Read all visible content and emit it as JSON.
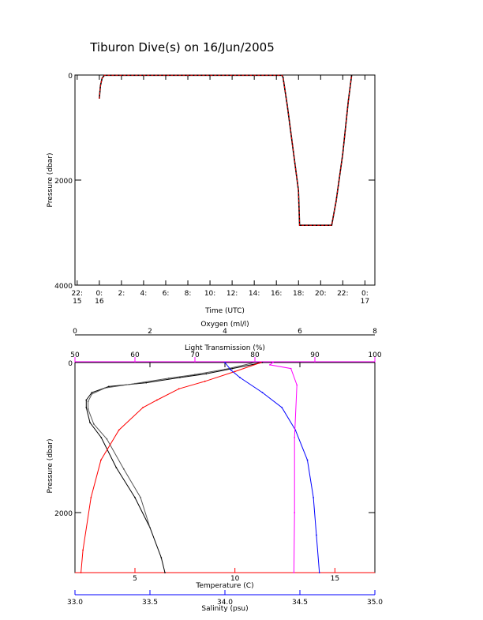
{
  "figure_title": "Tiburon Dive(s) on 16/Jun/2005",
  "chart_data": [
    {
      "type": "line",
      "title": "Tiburon Dive(s) on 16/Jun/2005",
      "xlabel": "Time (UTC)",
      "ylabel": "Pressure (dbar)",
      "x_ticks": [
        {
          "hour": -2,
          "line1": "22:",
          "line2": "15"
        },
        {
          "hour": 0,
          "line1": "0:",
          "line2": "16"
        },
        {
          "hour": 2,
          "line1": "2:",
          "line2": ""
        },
        {
          "hour": 4,
          "line1": "4:",
          "line2": ""
        },
        {
          "hour": 6,
          "line1": "6:",
          "line2": ""
        },
        {
          "hour": 8,
          "line1": "8:",
          "line2": ""
        },
        {
          "hour": 10,
          "line1": "10:",
          "line2": ""
        },
        {
          "hour": 12,
          "line1": "12:",
          "line2": ""
        },
        {
          "hour": 14,
          "line1": "14:",
          "line2": ""
        },
        {
          "hour": 16,
          "line1": "16:",
          "line2": ""
        },
        {
          "hour": 18,
          "line1": "18:",
          "line2": ""
        },
        {
          "hour": 20,
          "line1": "20:",
          "line2": ""
        },
        {
          "hour": 22,
          "line1": "22:",
          "line2": ""
        },
        {
          "hour": 24,
          "line1": "0:",
          "line2": "17"
        }
      ],
      "xlim_hours": [
        -2.2,
        24.9
      ],
      "ylim": [
        4000,
        0
      ],
      "y_ticks": [
        0,
        2000,
        4000
      ],
      "series": [
        {
          "color": "#ff0000",
          "x_hours": [
            0.0,
            0.1,
            0.25,
            0.45,
            1.0,
            8.0,
            16.5,
            16.6,
            17.0,
            17.5,
            18.0,
            18.1,
            20.0,
            21.0,
            21.4,
            22.0,
            22.5,
            22.8
          ],
          "pressure": [
            450,
            200,
            60,
            5,
            5,
            5,
            5,
            40,
            600,
            1400,
            2200,
            2860,
            2860,
            2860,
            2400,
            1500,
            500,
            0
          ]
        }
      ]
    },
    {
      "type": "line",
      "ylabel": "Pressure (dbar)",
      "ylim": [
        2800,
        0
      ],
      "y_ticks": [
        0,
        2000
      ],
      "axes": {
        "oxygen": {
          "label": "Oxygen (ml/l)",
          "range": [
            0,
            8
          ],
          "ticks": [
            0,
            2,
            4,
            6,
            8
          ],
          "color": "#000000"
        },
        "light_transmission": {
          "label": "Light Transmission (%)",
          "range": [
            50,
            100
          ],
          "ticks": [
            50,
            60,
            70,
            80,
            90,
            100
          ],
          "color": "#ff00ff"
        },
        "temperature": {
          "label": "Temperature (C)",
          "range": [
            2,
            17
          ],
          "ticks": [
            5,
            10,
            15
          ],
          "color": "#ff0000"
        },
        "salinity": {
          "label": "Salinity (psu)",
          "range": [
            33.0,
            35.0
          ],
          "ticks": [
            "33.0",
            "33.5",
            "34.0",
            "34.5",
            "35.0"
          ],
          "color": "#0000ff"
        }
      },
      "series": [
        {
          "color": "#000000",
          "axis": "oxygen",
          "x": [
            5.0,
            4.2,
            3.5,
            2.8,
            1.9,
            0.9,
            0.45,
            0.3,
            0.3,
            0.4,
            0.7,
            1.1,
            1.6,
            2.0,
            2.3,
            2.4
          ],
          "pressure": [
            0,
            80,
            150,
            200,
            270,
            320,
            400,
            500,
            600,
            800,
            1000,
            1400,
            1800,
            2200,
            2600,
            2800
          ]
        },
        {
          "color": "#555555",
          "axis": "oxygen",
          "x": [
            4.8,
            4.0,
            3.2,
            2.5,
            1.6,
            0.8,
            0.45,
            0.35,
            0.35,
            0.5,
            0.85,
            1.3,
            1.75,
            2.0
          ],
          "pressure": [
            0,
            90,
            160,
            210,
            280,
            340,
            420,
            520,
            620,
            820,
            1020,
            1420,
            1800,
            2200
          ]
        },
        {
          "color": "#ff0000",
          "axis": "temperature",
          "x": [
            11.3,
            10.0,
            8.5,
            7.2,
            6.1,
            5.4,
            4.2,
            3.3,
            2.8,
            2.4,
            2.3
          ],
          "pressure": [
            0,
            120,
            250,
            350,
            500,
            600,
            900,
            1300,
            1800,
            2500,
            2800
          ]
        },
        {
          "color": "#0000ff",
          "axis": "salinity",
          "x": [
            34.0,
            34.04,
            34.1,
            34.25,
            34.38,
            34.47,
            34.55,
            34.59,
            34.61,
            34.63
          ],
          "pressure": [
            0,
            100,
            200,
            400,
            600,
            900,
            1300,
            1800,
            2300,
            2800
          ]
        },
        {
          "color": "#ff00ff",
          "axis": "light_transmission",
          "x": [
            83.0,
            82.5,
            86.0,
            87.0,
            86.6,
            86.6,
            86.5
          ],
          "pressure": [
            0,
            30,
            80,
            300,
            1000,
            2000,
            2800
          ]
        }
      ]
    }
  ]
}
